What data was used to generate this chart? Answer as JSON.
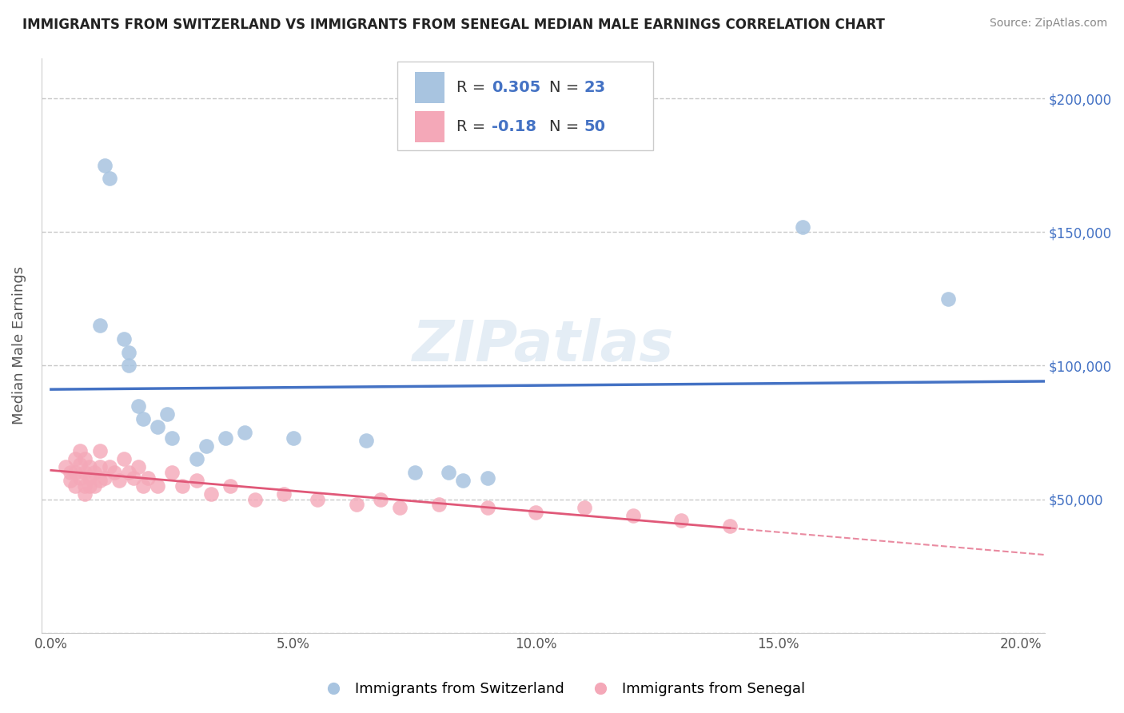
{
  "title": "IMMIGRANTS FROM SWITZERLAND VS IMMIGRANTS FROM SENEGAL MEDIAN MALE EARNINGS CORRELATION CHART",
  "source": "Source: ZipAtlas.com",
  "ylabel": "Median Male Earnings",
  "xlabel_ticks": [
    "0.0%",
    "5.0%",
    "10.0%",
    "15.0%",
    "20.0%"
  ],
  "xlabel_vals": [
    0.0,
    0.05,
    0.1,
    0.15,
    0.2
  ],
  "ylabel_ticks": [
    0,
    50000,
    100000,
    150000,
    200000
  ],
  "ylabel_labels": [
    "",
    "$50,000",
    "$100,000",
    "$150,000",
    "$200,000"
  ],
  "ylim": [
    0,
    215000
  ],
  "xlim": [
    -0.002,
    0.205
  ],
  "r_swiss": 0.305,
  "n_swiss": 23,
  "r_senegal": -0.18,
  "n_senegal": 50,
  "swiss_color": "#a8c4e0",
  "senegal_color": "#f4a8b8",
  "line_swiss_color": "#4472c4",
  "line_senegal_color": "#e05878",
  "background_color": "#ffffff",
  "grid_color": "#c8c8c8",
  "watermark": "ZIPatlas",
  "swiss_dots_x": [
    0.012,
    0.01,
    0.015,
    0.016,
    0.016,
    0.018,
    0.019,
    0.022,
    0.025,
    0.03,
    0.032,
    0.04,
    0.05,
    0.065,
    0.075,
    0.082,
    0.085,
    0.09,
    0.011,
    0.024,
    0.036,
    0.155,
    0.185
  ],
  "swiss_dots_y": [
    170000,
    115000,
    110000,
    100000,
    105000,
    85000,
    80000,
    77000,
    73000,
    65000,
    70000,
    75000,
    73000,
    72000,
    60000,
    60000,
    57000,
    58000,
    175000,
    82000,
    73000,
    152000,
    125000
  ],
  "senegal_dots_x": [
    0.003,
    0.004,
    0.004,
    0.005,
    0.005,
    0.005,
    0.006,
    0.006,
    0.006,
    0.007,
    0.007,
    0.007,
    0.007,
    0.008,
    0.008,
    0.008,
    0.009,
    0.009,
    0.01,
    0.01,
    0.01,
    0.011,
    0.012,
    0.013,
    0.014,
    0.015,
    0.016,
    0.017,
    0.018,
    0.019,
    0.02,
    0.022,
    0.025,
    0.027,
    0.03,
    0.033,
    0.037,
    0.042,
    0.048,
    0.055,
    0.063,
    0.068,
    0.072,
    0.08,
    0.09,
    0.1,
    0.11,
    0.12,
    0.13,
    0.14
  ],
  "senegal_dots_y": [
    62000,
    60000,
    57000,
    65000,
    60000,
    55000,
    68000,
    63000,
    58000,
    65000,
    60000,
    55000,
    52000,
    62000,
    58000,
    55000,
    60000,
    55000,
    68000,
    62000,
    57000,
    58000,
    62000,
    60000,
    57000,
    65000,
    60000,
    58000,
    62000,
    55000,
    58000,
    55000,
    60000,
    55000,
    57000,
    52000,
    55000,
    50000,
    52000,
    50000,
    48000,
    50000,
    47000,
    48000,
    47000,
    45000,
    47000,
    44000,
    42000,
    40000
  ]
}
